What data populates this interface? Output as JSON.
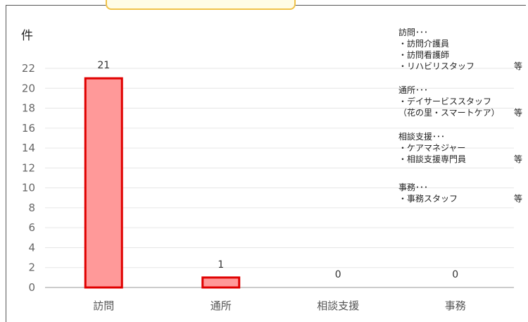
{
  "unit_label": "件",
  "notes": [
    {
      "title": "訪問･･･",
      "lines": [
        {
          "text": "・訪問介護員",
          "suffix": ""
        },
        {
          "text": "・訪問看護師",
          "suffix": ""
        },
        {
          "text": "・リハビリスタッフ",
          "suffix": "等"
        }
      ]
    },
    {
      "title": "通所･･･",
      "lines": [
        {
          "text": "・デイサービススタッフ",
          "suffix": ""
        },
        {
          "text": "（花の里・スマートケア）",
          "suffix": "等"
        }
      ]
    },
    {
      "title": "相談支援･･･",
      "lines": [
        {
          "text": "・ケアマネジャー",
          "suffix": ""
        },
        {
          "text": "・相談支援専門員",
          "suffix": "等"
        }
      ]
    },
    {
      "title": "事務･･･",
      "lines": [
        {
          "text": "・事務スタッフ",
          "suffix": "等"
        }
      ]
    }
  ],
  "chart_data": {
    "type": "bar",
    "categories": [
      "訪問",
      "通所",
      "相談支援",
      "事務"
    ],
    "values": [
      21,
      1,
      0,
      0
    ],
    "data_labels": [
      "21",
      "1",
      "0",
      "0"
    ],
    "ylim": [
      0,
      22
    ],
    "yticks": [
      0,
      2,
      4,
      6,
      8,
      10,
      12,
      14,
      16,
      18,
      20,
      22
    ],
    "grid": true,
    "bar_fill": "#ff9999",
    "bar_stroke": "#e00000"
  }
}
